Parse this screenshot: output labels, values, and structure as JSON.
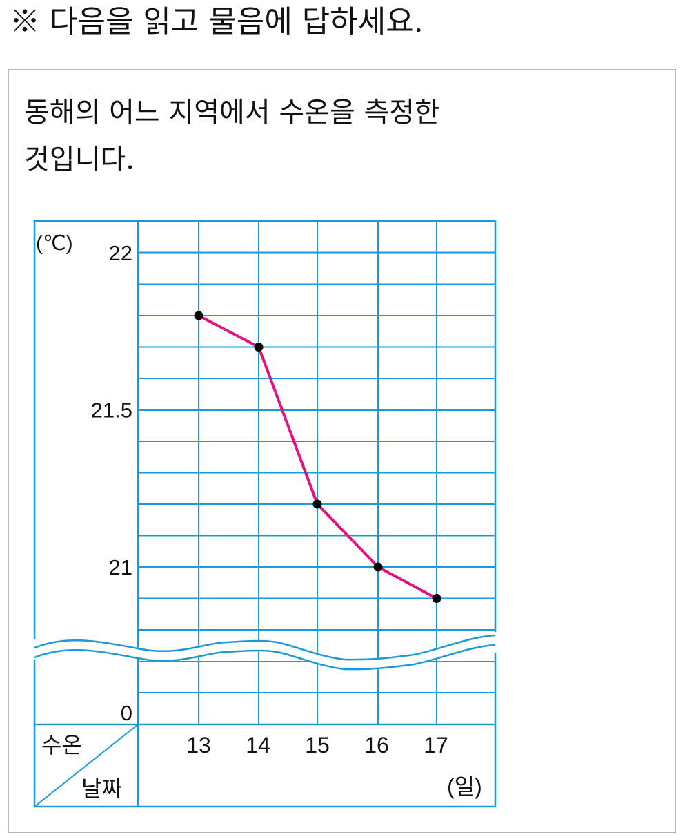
{
  "instruction": "※ 다음을 읽고 물음에 답하세요.",
  "problem": {
    "line1": "동해의 어느 지역에서 수온을 측정한",
    "line2": "것입니다."
  },
  "chart_data": {
    "type": "line",
    "title": "",
    "xlabel": "날짜",
    "ylabel": "수온",
    "x_unit": "(일)",
    "y_unit": "(℃)",
    "categories": [
      "13",
      "14",
      "15",
      "16",
      "17"
    ],
    "values": [
      21.8,
      21.7,
      21.2,
      21.0,
      20.9
    ],
    "ylim": [
      0,
      22
    ],
    "y_ticks": [
      "22",
      "21.5",
      "21",
      "0"
    ],
    "axis_break": true,
    "grid": true,
    "colors": {
      "grid": "#1a9ad9",
      "line": "#e0137f",
      "point": "#000000"
    }
  }
}
